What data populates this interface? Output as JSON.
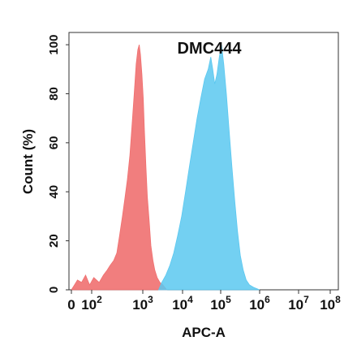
{
  "chart_data": {
    "type": "area",
    "title": "DMC444",
    "xlabel": "APC-A",
    "ylabel": "Count  (%)",
    "x_scale": "biexponential",
    "x_tick_labels": [
      {
        "value": 0,
        "base": "0",
        "exp": ""
      },
      {
        "value": 100,
        "base": "10",
        "exp": "2"
      },
      {
        "value": 1000,
        "base": "10",
        "exp": "3"
      },
      {
        "value": 10000,
        "base": "10",
        "exp": "4"
      },
      {
        "value": 100000,
        "base": "10",
        "exp": "5"
      },
      {
        "value": 1000000,
        "base": "10",
        "exp": "6"
      },
      {
        "value": 10000000,
        "base": "10",
        "exp": "7"
      },
      {
        "value": 100000000,
        "base": "10",
        "exp": "8"
      }
    ],
    "y_ticks": [
      0,
      20,
      40,
      60,
      80,
      100
    ],
    "ylim": [
      0,
      105
    ],
    "grid": false,
    "legend": "none",
    "series": [
      {
        "color": "#f07070",
        "points": [
          [
            0,
            0
          ],
          [
            15,
            2
          ],
          [
            30,
            4
          ],
          [
            50,
            3
          ],
          [
            70,
            6
          ],
          [
            90,
            2
          ],
          [
            110,
            5
          ],
          [
            140,
            3
          ],
          [
            170,
            6
          ],
          [
            200,
            8
          ],
          [
            230,
            10
          ],
          [
            270,
            12
          ],
          [
            310,
            15
          ],
          [
            350,
            22
          ],
          [
            400,
            30
          ],
          [
            450,
            38
          ],
          [
            500,
            45
          ],
          [
            560,
            55
          ],
          [
            620,
            68
          ],
          [
            680,
            80
          ],
          [
            740,
            92
          ],
          [
            800,
            98
          ],
          [
            850,
            100
          ],
          [
            900,
            96
          ],
          [
            960,
            88
          ],
          [
            1030,
            78
          ],
          [
            1100,
            65
          ],
          [
            1200,
            50
          ],
          [
            1300,
            38
          ],
          [
            1450,
            28
          ],
          [
            1600,
            18
          ],
          [
            1800,
            12
          ],
          [
            2000,
            8
          ],
          [
            2300,
            5
          ],
          [
            2700,
            3
          ],
          [
            3200,
            2
          ],
          [
            4000,
            0
          ]
        ]
      },
      {
        "color": "#5bc8f0",
        "points": [
          [
            2500,
            0
          ],
          [
            3000,
            3
          ],
          [
            3800,
            6
          ],
          [
            4800,
            10
          ],
          [
            6000,
            15
          ],
          [
            7500,
            22
          ],
          [
            9500,
            30
          ],
          [
            12000,
            40
          ],
          [
            15000,
            50
          ],
          [
            19000,
            60
          ],
          [
            24000,
            70
          ],
          [
            30000,
            78
          ],
          [
            38000,
            86
          ],
          [
            47000,
            90
          ],
          [
            55000,
            95
          ],
          [
            62000,
            90
          ],
          [
            70000,
            84
          ],
          [
            80000,
            88
          ],
          [
            92000,
            95
          ],
          [
            105000,
            100
          ],
          [
            120000,
            92
          ],
          [
            140000,
            80
          ],
          [
            165000,
            65
          ],
          [
            195000,
            50
          ],
          [
            230000,
            36
          ],
          [
            270000,
            24
          ],
          [
            320000,
            14
          ],
          [
            380000,
            8
          ],
          [
            450000,
            4
          ],
          [
            550000,
            2
          ],
          [
            700000,
            1
          ],
          [
            1000000,
            0
          ]
        ]
      }
    ]
  }
}
